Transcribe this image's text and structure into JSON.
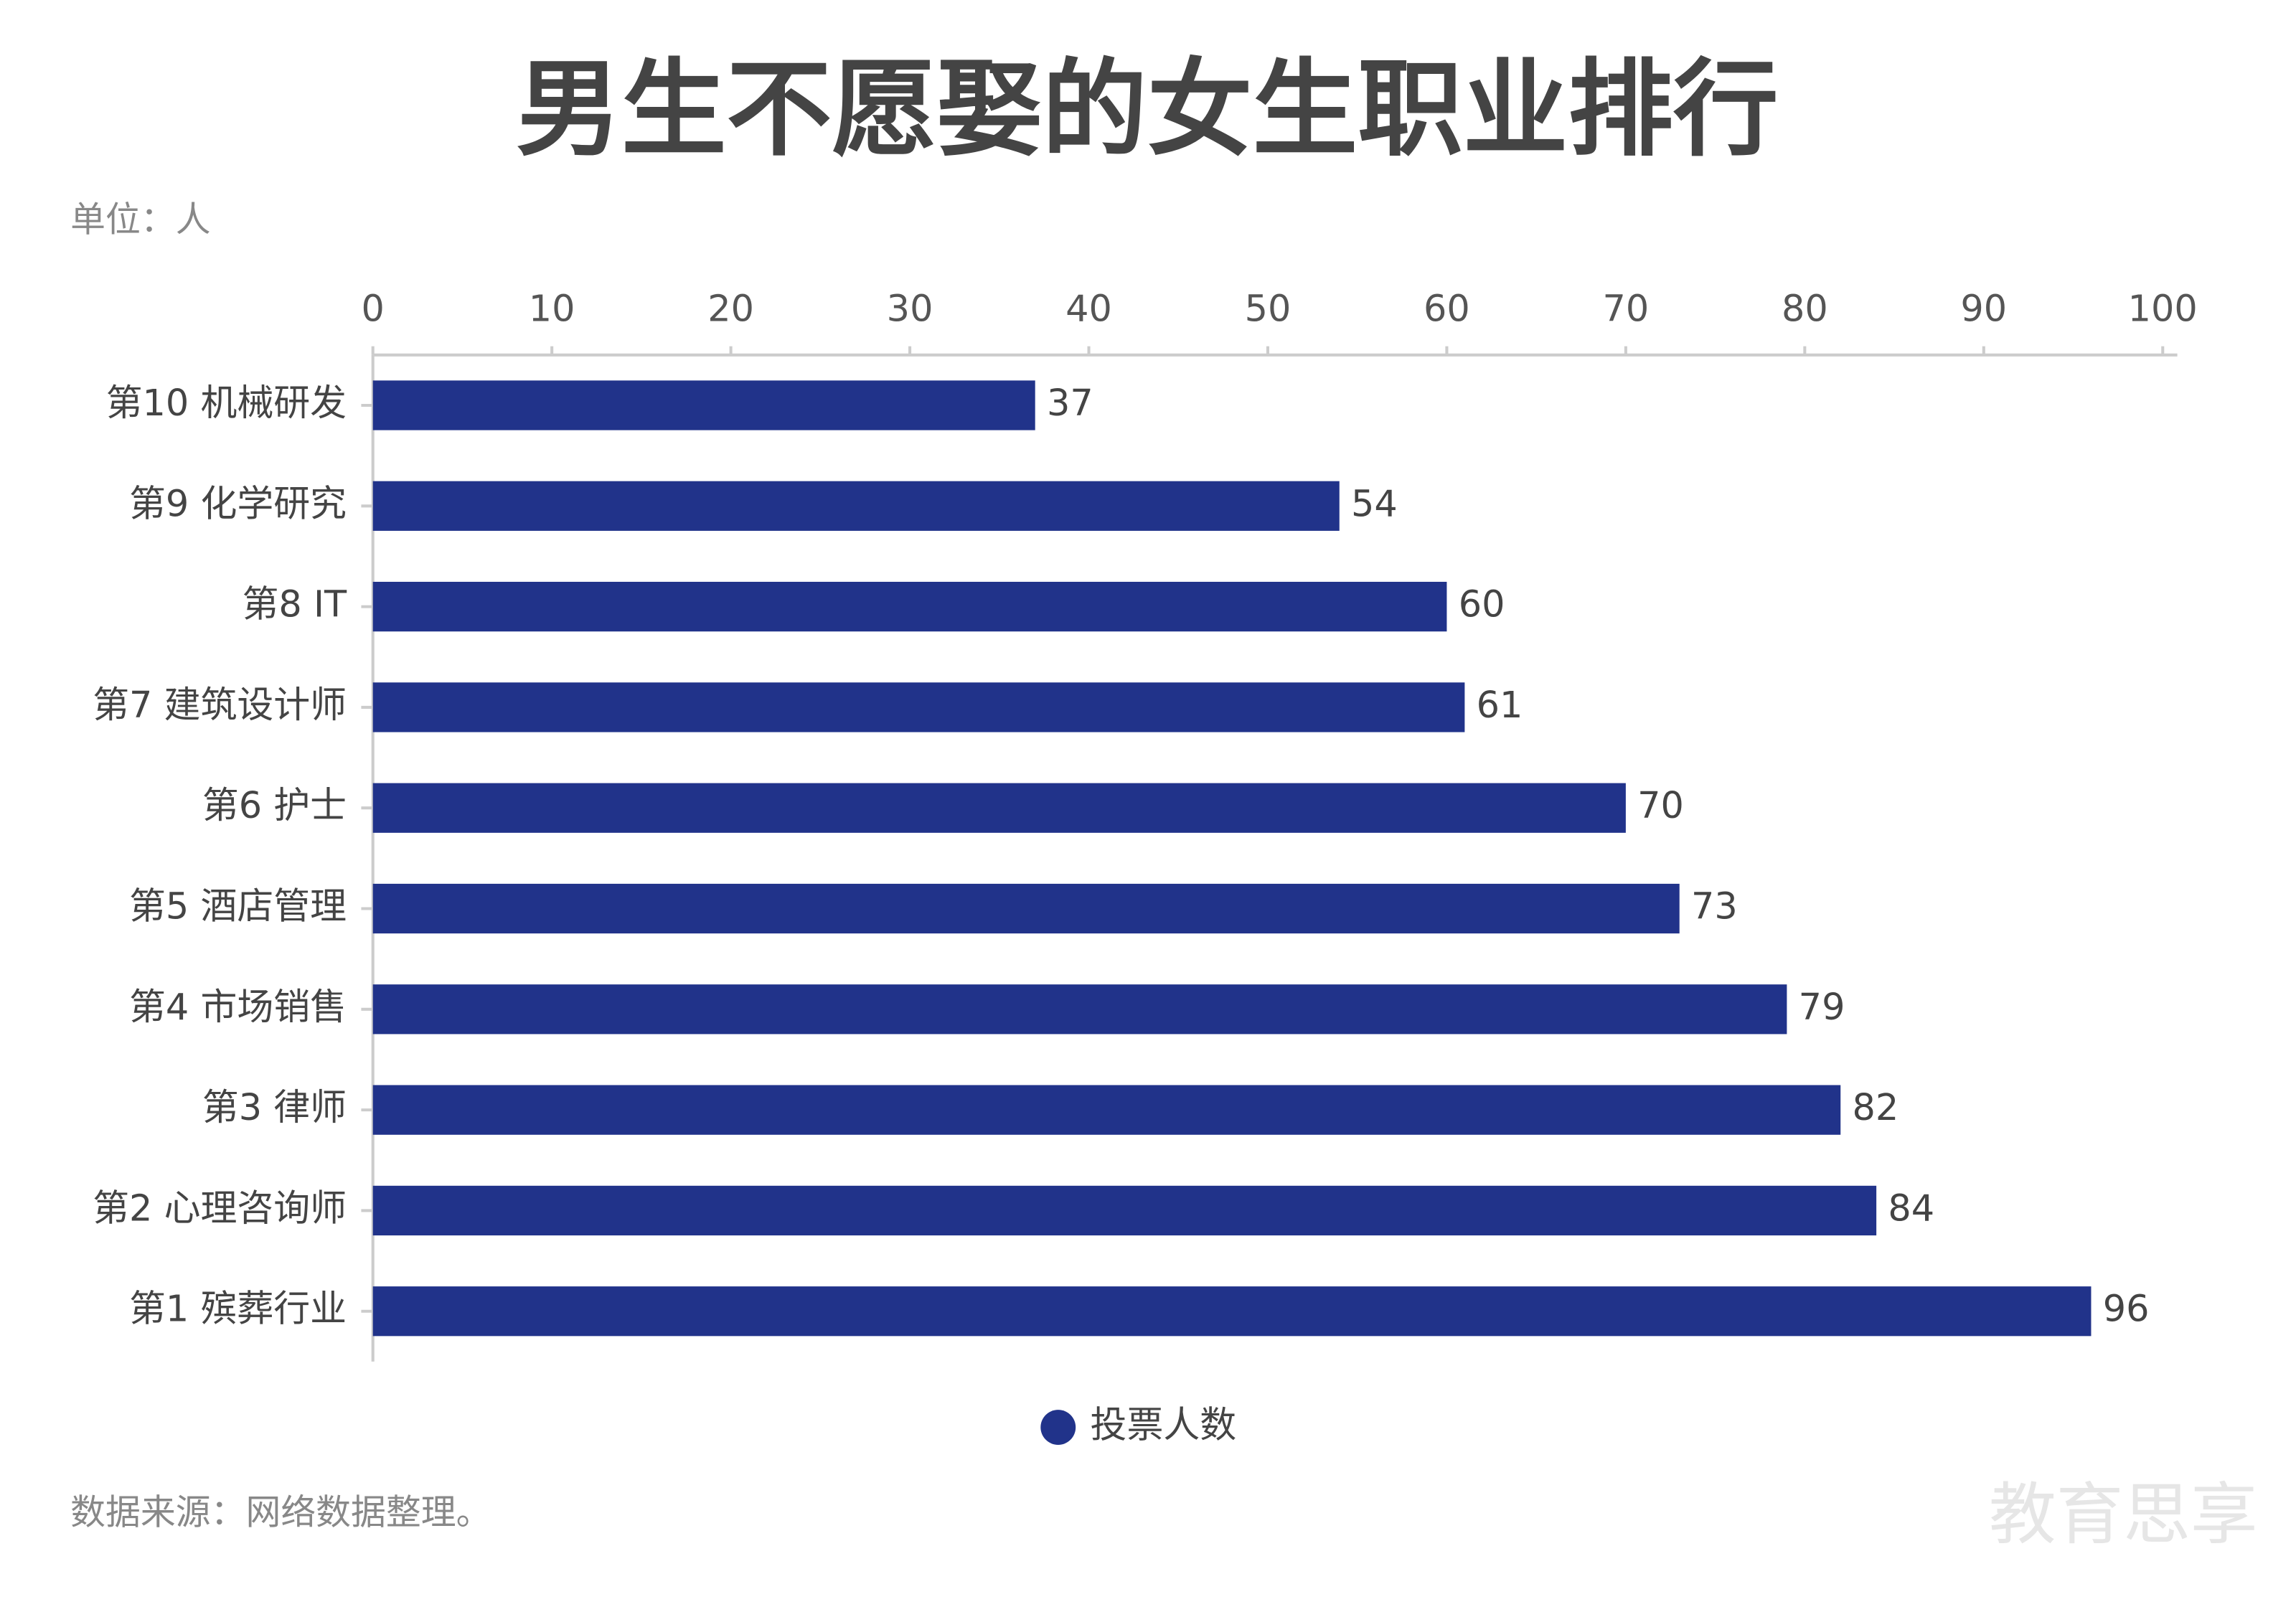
{
  "chart_data": {
    "type": "bar",
    "horizontal": true,
    "title": "男生不愿娶的女生职业排行",
    "subtitle": "单位：人",
    "source": "数据来源：网络数据整理。",
    "watermark": "教育思享",
    "categories": [
      "第10 机械研发",
      "第9 化学研究",
      "第8 IT",
      "第7 建筑设计师",
      "第6 护士",
      "第5 酒店管理",
      "第4 市场销售",
      "第3 律师",
      "第2 心理咨询师",
      "第1 殡葬行业"
    ],
    "series": [
      {
        "name": "投票人数",
        "color": "#21338a",
        "values": [
          37,
          54,
          60,
          61,
          70,
          73,
          79,
          82,
          84,
          96
        ]
      }
    ],
    "xlim": [
      0,
      100
    ],
    "xticks": [
      0,
      10,
      20,
      30,
      40,
      50,
      60,
      70,
      80,
      90,
      100
    ],
    "legend": "bottom"
  }
}
